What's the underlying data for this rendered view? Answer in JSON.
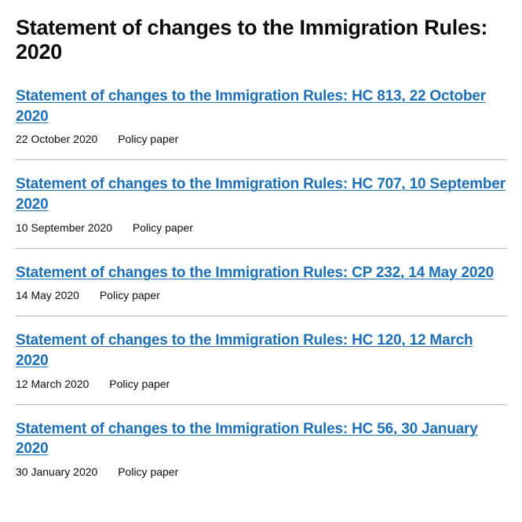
{
  "colors": {
    "link": "#1d70b8",
    "text": "#0b0c0c",
    "border": "#b1b4b6",
    "background": "#ffffff"
  },
  "title": "Statement of changes to the Immigration Rules: 2020",
  "documents": [
    {
      "title": "Statement of changes to the Immigration Rules: HC 813, 22 October 2020",
      "date": "22 October 2020",
      "type": "Policy paper"
    },
    {
      "title": "Statement of changes to the Immigration Rules: HC 707, 10 September 2020",
      "date": "10 September 2020",
      "type": "Policy paper"
    },
    {
      "title": "Statement of changes to the Immigration Rules: CP 232, 14 May 2020",
      "date": "14 May 2020",
      "type": "Policy paper"
    },
    {
      "title": "Statement of changes to the Immigration Rules: HC 120, 12 March 2020",
      "date": "12 March 2020",
      "type": "Policy paper"
    },
    {
      "title": "Statement of changes to the Immigration Rules: HC 56, 30 January 2020",
      "date": "30 January 2020",
      "type": "Policy paper"
    }
  ]
}
